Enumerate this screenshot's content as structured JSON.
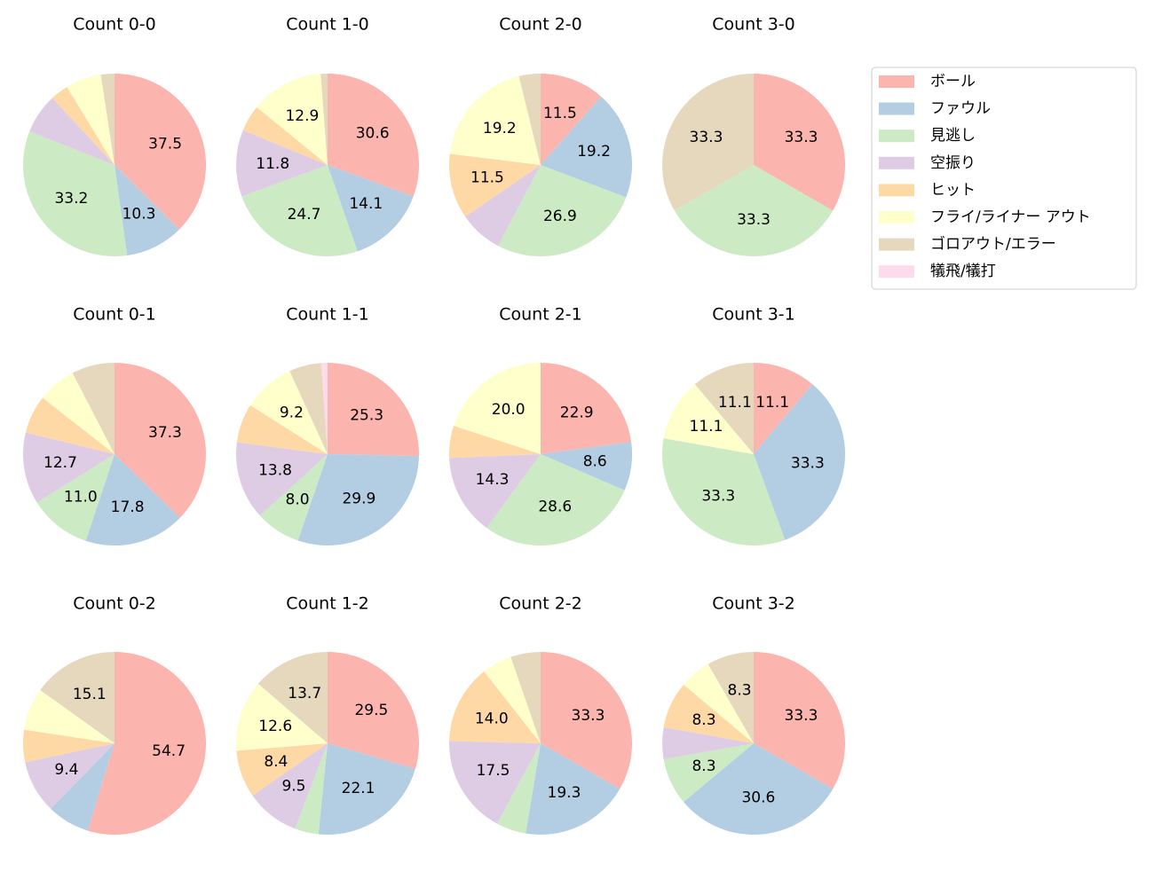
{
  "chart_data": [
    {
      "type": "pie",
      "title": "Count 0-0",
      "categories": [
        "ボール",
        "ファウル",
        "見逃し",
        "空振り",
        "ヒット",
        "フライ/ライナー アウト",
        "ゴロアウト/エラー",
        "犠飛/犠打"
      ],
      "colors": [
        "#fbb4ae",
        "#b3cde3",
        "#ccebc5",
        "#decbe4",
        "#fed9a6",
        "#ffffcc",
        "#e5d8bd",
        "#fddaec"
      ],
      "values": [
        37.5,
        10.3,
        33.2,
        7.1,
        3.2,
        6.3,
        2.4,
        0
      ],
      "value_labels": [
        "37.5",
        "10.3",
        "33.2",
        null,
        null,
        null,
        null,
        null
      ]
    },
    {
      "type": "pie",
      "title": "Count 1-0",
      "categories": [
        "ボール",
        "ファウル",
        "見逃し",
        "空振り",
        "ヒット",
        "フライ/ライナー アウト",
        "ゴロアウト/エラー",
        "犠飛/犠打"
      ],
      "colors": [
        "#fbb4ae",
        "#b3cde3",
        "#ccebc5",
        "#decbe4",
        "#fed9a6",
        "#ffffcc",
        "#e5d8bd",
        "#fddaec"
      ],
      "values": [
        30.6,
        14.1,
        24.7,
        11.8,
        4.7,
        12.9,
        1.2,
        0
      ],
      "value_labels": [
        "30.6",
        "14.1",
        "24.7",
        "11.8",
        null,
        "12.9",
        null,
        null
      ]
    },
    {
      "type": "pie",
      "title": "Count 2-0",
      "categories": [
        "ボール",
        "ファウル",
        "見逃し",
        "空振り",
        "ヒット",
        "フライ/ライナー アウト",
        "ゴロアウト/エラー",
        "犠飛/犠打"
      ],
      "colors": [
        "#fbb4ae",
        "#b3cde3",
        "#ccebc5",
        "#decbe4",
        "#fed9a6",
        "#ffffcc",
        "#e5d8bd",
        "#fddaec"
      ],
      "values": [
        11.5,
        19.2,
        26.9,
        7.7,
        11.5,
        19.2,
        3.8,
        0
      ],
      "value_labels": [
        "11.5",
        "19.2",
        "26.9",
        null,
        "11.5",
        "19.2",
        null,
        null
      ]
    },
    {
      "type": "pie",
      "title": "Count 3-0",
      "categories": [
        "ボール",
        "ファウル",
        "見逃し",
        "空振り",
        "ヒット",
        "フライ/ライナー アウト",
        "ゴロアウト/エラー",
        "犠飛/犠打"
      ],
      "colors": [
        "#fbb4ae",
        "#b3cde3",
        "#ccebc5",
        "#decbe4",
        "#fed9a6",
        "#ffffcc",
        "#e5d8bd",
        "#fddaec"
      ],
      "values": [
        33.3,
        0,
        33.3,
        0,
        0,
        0,
        33.3,
        0
      ],
      "value_labels": [
        "33.3",
        null,
        "33.3",
        null,
        null,
        null,
        "33.3",
        null
      ]
    },
    {
      "type": "pie",
      "title": "Count 0-1",
      "categories": [
        "ボール",
        "ファウル",
        "見逃し",
        "空振り",
        "ヒット",
        "フライ/ライナー アウト",
        "ゴロアウト/エラー",
        "犠飛/犠打"
      ],
      "colors": [
        "#fbb4ae",
        "#b3cde3",
        "#ccebc5",
        "#decbe4",
        "#fed9a6",
        "#ffffcc",
        "#e5d8bd",
        "#fddaec"
      ],
      "values": [
        37.3,
        17.8,
        11.0,
        12.7,
        6.8,
        6.8,
        7.6,
        0
      ],
      "value_labels": [
        "37.3",
        "17.8",
        "11.0",
        "12.7",
        null,
        null,
        null,
        null
      ]
    },
    {
      "type": "pie",
      "title": "Count 1-1",
      "categories": [
        "ボール",
        "ファウル",
        "見逃し",
        "空振り",
        "ヒット",
        "フライ/ライナー アウト",
        "ゴロアウト/エラー",
        "犠飛/犠打"
      ],
      "colors": [
        "#fbb4ae",
        "#b3cde3",
        "#ccebc5",
        "#decbe4",
        "#fed9a6",
        "#ffffcc",
        "#e5d8bd",
        "#fddaec"
      ],
      "values": [
        25.3,
        29.9,
        8.0,
        13.8,
        6.9,
        9.2,
        5.7,
        1.1
      ],
      "value_labels": [
        "25.3",
        "29.9",
        "8.0",
        "13.8",
        null,
        "9.2",
        null,
        null
      ]
    },
    {
      "type": "pie",
      "title": "Count 2-1",
      "categories": [
        "ボール",
        "ファウル",
        "見逃し",
        "空振り",
        "ヒット",
        "フライ/ライナー アウト",
        "ゴロアウト/エラー",
        "犠飛/犠打"
      ],
      "colors": [
        "#fbb4ae",
        "#b3cde3",
        "#ccebc5",
        "#decbe4",
        "#fed9a6",
        "#ffffcc",
        "#e5d8bd",
        "#fddaec"
      ],
      "values": [
        22.9,
        8.6,
        28.6,
        14.3,
        5.7,
        20.0,
        0,
        0
      ],
      "value_labels": [
        "22.9",
        "8.6",
        "28.6",
        "14.3",
        null,
        "20.0",
        null,
        null
      ]
    },
    {
      "type": "pie",
      "title": "Count 3-1",
      "categories": [
        "ボール",
        "ファウル",
        "見逃し",
        "空振り",
        "ヒット",
        "フライ/ライナー アウト",
        "ゴロアウト/エラー",
        "犠飛/犠打"
      ],
      "colors": [
        "#fbb4ae",
        "#b3cde3",
        "#ccebc5",
        "#decbe4",
        "#fed9a6",
        "#ffffcc",
        "#e5d8bd",
        "#fddaec"
      ],
      "values": [
        11.1,
        33.3,
        33.3,
        0,
        0,
        11.1,
        11.1,
        0
      ],
      "value_labels": [
        "11.1",
        "33.3",
        "33.3",
        null,
        null,
        "11.1",
        "11.1",
        null
      ]
    },
    {
      "type": "pie",
      "title": "Count 0-2",
      "categories": [
        "ボール",
        "ファウル",
        "見逃し",
        "空振り",
        "ヒット",
        "フライ/ライナー アウト",
        "ゴロアウト/エラー",
        "犠飛/犠打"
      ],
      "colors": [
        "#fbb4ae",
        "#b3cde3",
        "#ccebc5",
        "#decbe4",
        "#fed9a6",
        "#ffffcc",
        "#e5d8bd",
        "#fddaec"
      ],
      "values": [
        54.7,
        7.5,
        0,
        9.4,
        5.7,
        7.5,
        15.1,
        0
      ],
      "value_labels": [
        "54.7",
        null,
        null,
        "9.4",
        null,
        null,
        "15.1",
        null
      ]
    },
    {
      "type": "pie",
      "title": "Count 1-2",
      "categories": [
        "ボール",
        "ファウル",
        "見逃し",
        "空振り",
        "ヒット",
        "フライ/ライナー アウト",
        "ゴロアウト/エラー",
        "犠飛/犠打"
      ],
      "colors": [
        "#fbb4ae",
        "#b3cde3",
        "#ccebc5",
        "#decbe4",
        "#fed9a6",
        "#ffffcc",
        "#e5d8bd",
        "#fddaec"
      ],
      "values": [
        29.5,
        22.1,
        4.2,
        9.5,
        8.4,
        12.6,
        13.7,
        0
      ],
      "value_labels": [
        "29.5",
        "22.1",
        null,
        "9.5",
        "8.4",
        "12.6",
        "13.7",
        null
      ]
    },
    {
      "type": "pie",
      "title": "Count 2-2",
      "categories": [
        "ボール",
        "ファウル",
        "見逃し",
        "空振り",
        "ヒット",
        "フライ/ライナー アウト",
        "ゴロアウト/エラー",
        "犠飛/犠打"
      ],
      "colors": [
        "#fbb4ae",
        "#b3cde3",
        "#ccebc5",
        "#decbe4",
        "#fed9a6",
        "#ffffcc",
        "#e5d8bd",
        "#fddaec"
      ],
      "values": [
        33.3,
        19.3,
        5.3,
        17.5,
        14.0,
        5.3,
        5.3,
        0
      ],
      "value_labels": [
        "33.3",
        "19.3",
        null,
        "17.5",
        "14.0",
        null,
        null,
        null
      ]
    },
    {
      "type": "pie",
      "title": "Count 3-2",
      "categories": [
        "ボール",
        "ファウル",
        "見逃し",
        "空振り",
        "ヒット",
        "フライ/ライナー アウト",
        "ゴロアウト/エラー",
        "犠飛/犠打"
      ],
      "colors": [
        "#fbb4ae",
        "#b3cde3",
        "#ccebc5",
        "#decbe4",
        "#fed9a6",
        "#ffffcc",
        "#e5d8bd",
        "#fddaec"
      ],
      "values": [
        33.3,
        30.6,
        8.3,
        5.6,
        8.3,
        5.6,
        8.3,
        0
      ],
      "value_labels": [
        "33.3",
        "30.6",
        "8.3",
        null,
        "8.3",
        null,
        "8.3",
        null
      ]
    }
  ]
}
